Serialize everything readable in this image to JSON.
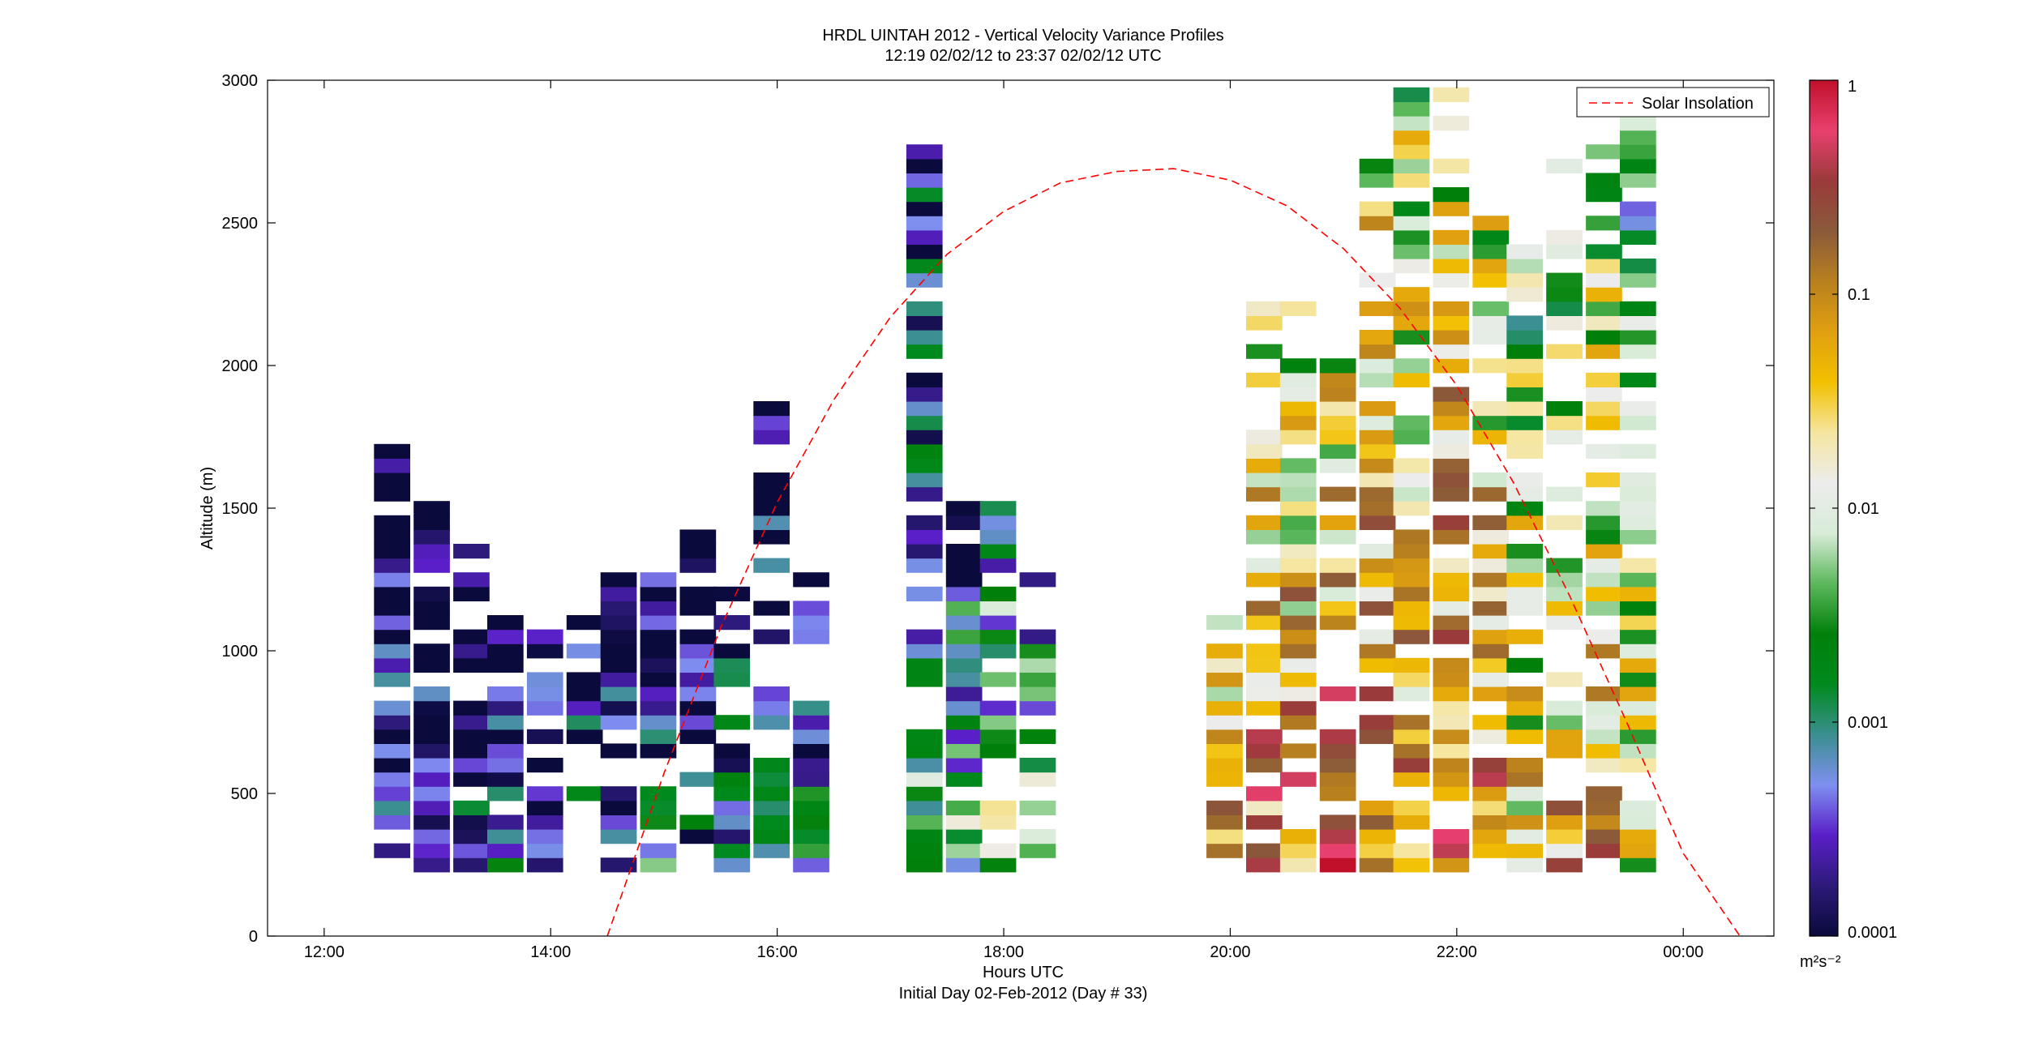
{
  "figure": {
    "title": "HRDL UINTAH 2012 - Vertical Velocity Variance Profiles",
    "subtitle": "12:19 02/02/12 to 23:37 02/02/12  UTC",
    "footer": "Initial Day 02-Feb-2012 (Day # 33)"
  },
  "chart_data": {
    "type": "heatmap",
    "title": "HRDL UINTAH 2012 - Vertical Velocity Variance Profiles",
    "subtitle": "12:19 02/02/12 to 23:37 02/02/12  UTC",
    "xlabel": "Hours UTC",
    "ylabel": "Altitude (m)",
    "xlim": [
      11.5,
      24.8
    ],
    "ylim": [
      0,
      3000
    ],
    "x_ticks": [
      12,
      14,
      16,
      18,
      20,
      22,
      24
    ],
    "x_tick_labels": [
      "12:00",
      "14:00",
      "16:00",
      "18:00",
      "20:00",
      "22:00",
      "00:00"
    ],
    "y_ticks": [
      0,
      500,
      1000,
      1500,
      2000,
      2500,
      3000
    ],
    "y_tick_labels": [
      "0",
      "500",
      "1000",
      "1500",
      "2000",
      "2500",
      "3000"
    ],
    "color_scale": "log",
    "colorbar": {
      "range": [
        0.0001,
        1
      ],
      "tick_values": [
        0.0001,
        0.001,
        0.01,
        0.1,
        1
      ],
      "tick_labels": [
        "0.0001",
        "0.001",
        "0.01",
        "0.1",
        "1"
      ],
      "unit_label": "m²s⁻²",
      "colors": [
        "#0a0a3c",
        "#2d1a7a",
        "#5a1fc8",
        "#7f8ff0",
        "#3a8f8f",
        "#008a1e",
        "#00800a",
        "#5cb85c",
        "#d8ecd8",
        "#ececec",
        "#f5e6a0",
        "#f2c000",
        "#e0a010",
        "#b8801e",
        "#8a5a3a",
        "#9a3a3a",
        "#e8406e",
        "#c0102a"
      ]
    },
    "grid": false,
    "legend": {
      "position": "top-right",
      "entries": [
        "Solar Insolation"
      ]
    },
    "series": [
      {
        "name": "Solar Insolation",
        "type": "line",
        "style": "dashed",
        "color": "#ff0000",
        "x": [
          14.5,
          15.0,
          15.5,
          16.0,
          16.5,
          17.0,
          17.5,
          18.0,
          18.5,
          19.0,
          19.5,
          20.0,
          20.5,
          21.0,
          21.5,
          22.0,
          22.5,
          23.0,
          23.5,
          24.0,
          24.5
        ],
        "y": [
          0,
          570,
          1080,
          1520,
          1880,
          2170,
          2390,
          2540,
          2640,
          2680,
          2690,
          2650,
          2560,
          2410,
          2200,
          1930,
          1590,
          1190,
          750,
          290,
          0
        ]
      }
    ],
    "profiles": [
      {
        "time": 12.6,
        "top": 1760,
        "mean_log": -3.9
      },
      {
        "time": 12.95,
        "top": 1610,
        "mean_log": -3.9
      },
      {
        "time": 13.3,
        "top": 1400,
        "mean_log": -3.9
      },
      {
        "time": 13.6,
        "top": 1170,
        "mean_log": -3.9
      },
      {
        "time": 13.95,
        "top": 1150,
        "mean_log": -3.8
      },
      {
        "time": 14.3,
        "top": 1230,
        "mean_log": -3.8
      },
      {
        "time": 14.6,
        "top": 1280,
        "mean_log": -3.8
      },
      {
        "time": 14.95,
        "top": 1300,
        "mean_log": -3.6
      },
      {
        "time": 15.3,
        "top": 1460,
        "mean_log": -3.7
      },
      {
        "time": 15.6,
        "top": 1380,
        "mean_log": -3.6
      },
      {
        "time": 15.95,
        "top": 1910,
        "mean_log": -3.6
      },
      {
        "time": 16.3,
        "top": 1310,
        "mean_log": -3.6
      },
      {
        "time": 17.3,
        "top": 2780,
        "mean_log": -3.2
      },
      {
        "time": 17.65,
        "top": 1550,
        "mean_log": -3.0
      },
      {
        "time": 17.95,
        "top": 1670,
        "mean_log": -2.8
      },
      {
        "time": 18.3,
        "top": 1280,
        "mean_log": -2.6
      },
      {
        "time": 19.95,
        "top": 1150,
        "mean_log": -1.6
      },
      {
        "time": 20.3,
        "top": 2270,
        "mean_log": -1.4
      },
      {
        "time": 20.6,
        "top": 2390,
        "mean_log": -1.5
      },
      {
        "time": 20.95,
        "top": 2050,
        "mean_log": -1.3
      },
      {
        "time": 21.3,
        "top": 2820,
        "mean_log": -1.4
      },
      {
        "time": 21.6,
        "top": 3000,
        "mean_log": -1.6
      },
      {
        "time": 21.95,
        "top": 3000,
        "mean_log": -1.4
      },
      {
        "time": 22.3,
        "top": 2560,
        "mean_log": -1.5
      },
      {
        "time": 22.6,
        "top": 2560,
        "mean_log": -2.0
      },
      {
        "time": 22.95,
        "top": 2740,
        "mean_log": -1.9
      },
      {
        "time": 23.3,
        "top": 2780,
        "mean_log": -1.8
      },
      {
        "time": 23.6,
        "top": 2960,
        "mean_log": -2.3
      }
    ]
  }
}
